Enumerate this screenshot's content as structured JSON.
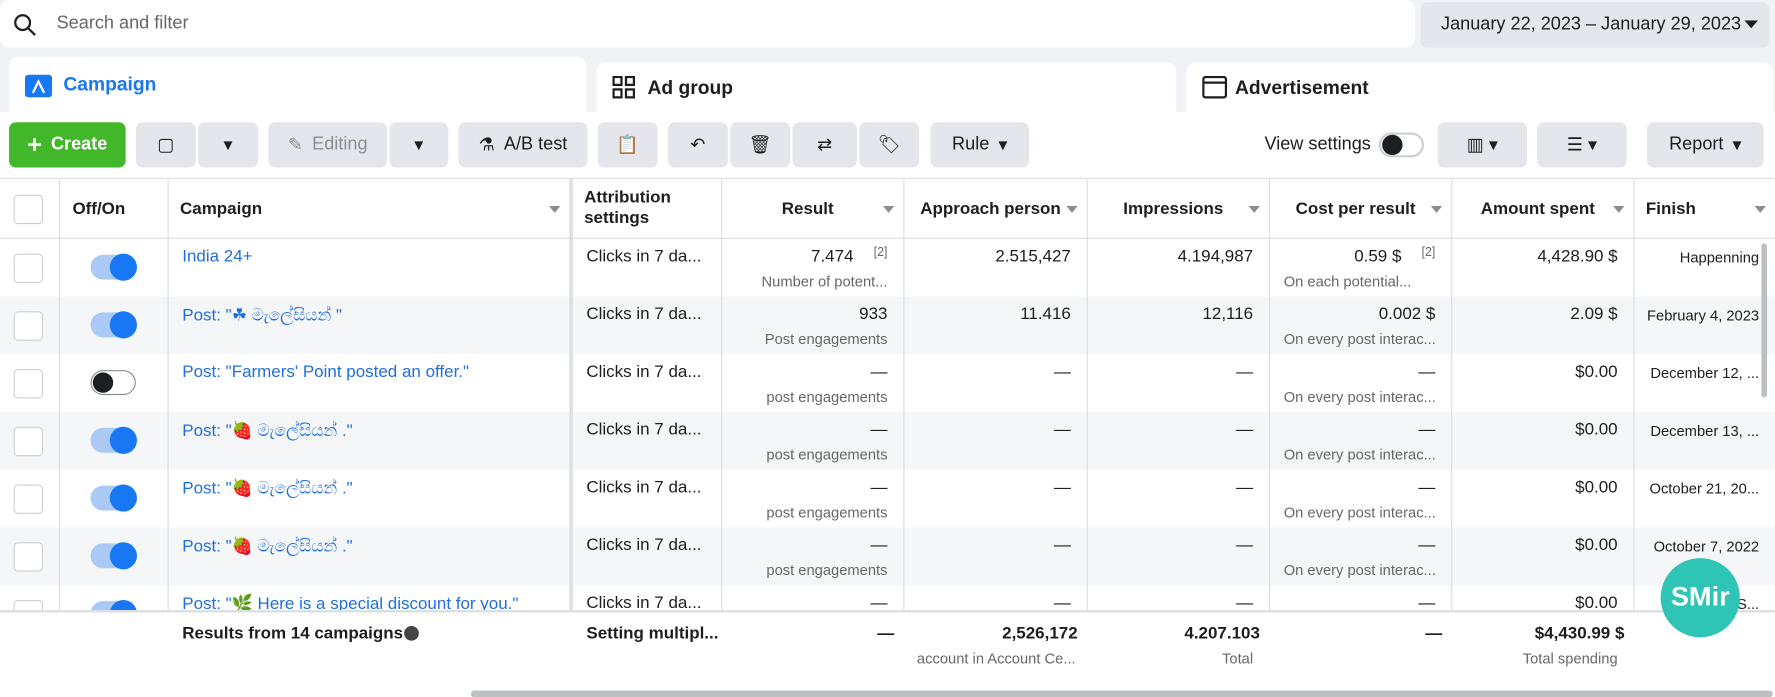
{
  "search": {
    "placeholder": "Search and filter"
  },
  "date_range": "January 22, 2023 – January 29, 2023",
  "tabs": [
    "Campaign",
    "Ad group",
    "Advertisement"
  ],
  "toolbar": {
    "create": "Create",
    "editing": "Editing",
    "ab_test": "A/B test",
    "rule": "Rule",
    "view_settings": "View settings",
    "report": "Report"
  },
  "table": {
    "headers": {
      "onoff": "Off/On",
      "campaign": "Campaign",
      "attribution": "Attribution settings",
      "result": "Result",
      "approach": "Approach person",
      "impressions": "Impressions",
      "cost": "Cost per result",
      "amount": "Amount spent",
      "finish": "Finish"
    },
    "rows": [
      {
        "on": true,
        "campaign": "India 24+",
        "attribution": "Clicks in 7 da...",
        "result": "7.474",
        "result_note": "[2]",
        "result_sub": "Number of potent...",
        "approach": "2.515,427",
        "impressions": "4.194,987",
        "cost": "0.59 $",
        "cost_note": "[2]",
        "cost_sub": "On each potential...",
        "amount": "4,428.90 $",
        "finish": "Happenning"
      },
      {
        "on": true,
        "campaign": "Post: \"☘ මැලේසියන් \"",
        "attribution": "Clicks in 7 da...",
        "result": "933",
        "result_sub": "Post engagements",
        "approach": "11.416",
        "impressions": "12,116",
        "cost": "0.002 $",
        "cost_sub": "On every post interac...",
        "amount": "2.09 $",
        "finish": "February 4, 2023"
      },
      {
        "on": false,
        "campaign": "Post: \"Farmers' Point posted an offer.\"",
        "attribution": "Clicks in 7 da...",
        "result": "—",
        "result_sub": "post engagements",
        "approach": "—",
        "impressions": "—",
        "cost": "—",
        "cost_sub": "On every post interac...",
        "amount": "$0.00",
        "finish": "December 12, ..."
      },
      {
        "on": true,
        "campaign": "Post: \"🍓 මැලේසියන් .\"",
        "attribution": "Clicks in 7 da...",
        "result": "—",
        "result_sub": "post engagements",
        "approach": "—",
        "impressions": "—",
        "cost": "—",
        "cost_sub": "On every post interac...",
        "amount": "$0.00",
        "finish": "December 13, ..."
      },
      {
        "on": true,
        "campaign": "Post: \"🍓 මැලේසියන් .\"",
        "attribution": "Clicks in 7 da...",
        "result": "—",
        "result_sub": "post engagements",
        "approach": "—",
        "impressions": "—",
        "cost": "—",
        "cost_sub": "On every post interac...",
        "amount": "$0.00",
        "finish": "October 21, 20..."
      },
      {
        "on": true,
        "campaign": "Post: \"🍓 මැලේසියන් .\"",
        "attribution": "Clicks in 7 da...",
        "result": "—",
        "result_sub": "post engagements",
        "approach": "—",
        "impressions": "—",
        "cost": "—",
        "cost_sub": "On every post interac...",
        "amount": "$0.00",
        "finish": "October 7, 2022"
      },
      {
        "on": true,
        "campaign": "Post: \"🌿 Here is a special discount for you.\"",
        "attribution": "Clicks in 7 da...",
        "result": "—",
        "approach": "—",
        "impressions": "—",
        "cost": "—",
        "amount": "$0.00",
        "finish": "S..."
      }
    ],
    "footer": {
      "campaign": "Results from 14 campaigns",
      "attribution": "Setting multipl...",
      "result": "—",
      "approach": "2,526,172",
      "approach_sub": "account in Account Ce...",
      "impressions": "4.207.103",
      "impressions_sub": "Total",
      "cost": "—",
      "amount": "$4,430.99 $",
      "amount_sub": "Total spending"
    }
  },
  "badge": "SMir"
}
